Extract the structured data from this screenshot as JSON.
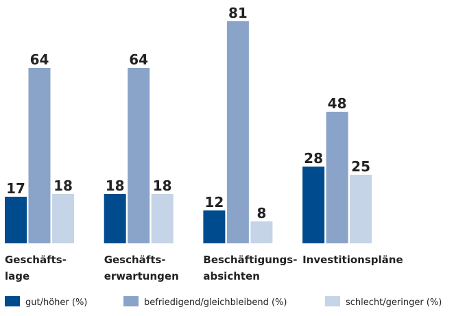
{
  "chart_data": {
    "type": "bar",
    "categories": [
      [
        "Geschäfts-",
        "lage"
      ],
      [
        "Geschäfts-",
        "erwartungen"
      ],
      [
        "Beschäftigungs-",
        "absichten"
      ],
      [
        "Investitionspläne"
      ]
    ],
    "series": [
      {
        "name": "gut/höher (%)",
        "color": "#004b8d",
        "values": [
          17,
          18,
          12,
          28
        ]
      },
      {
        "name": "befriedigend/gleichbleibend (%)",
        "color": "#8aa3c8",
        "values": [
          64,
          64,
          81,
          48
        ]
      },
      {
        "name": "schlecht/geringer (%)",
        "color": "#c5d4e6",
        "values": [
          18,
          18,
          8,
          25
        ]
      }
    ]
  }
}
